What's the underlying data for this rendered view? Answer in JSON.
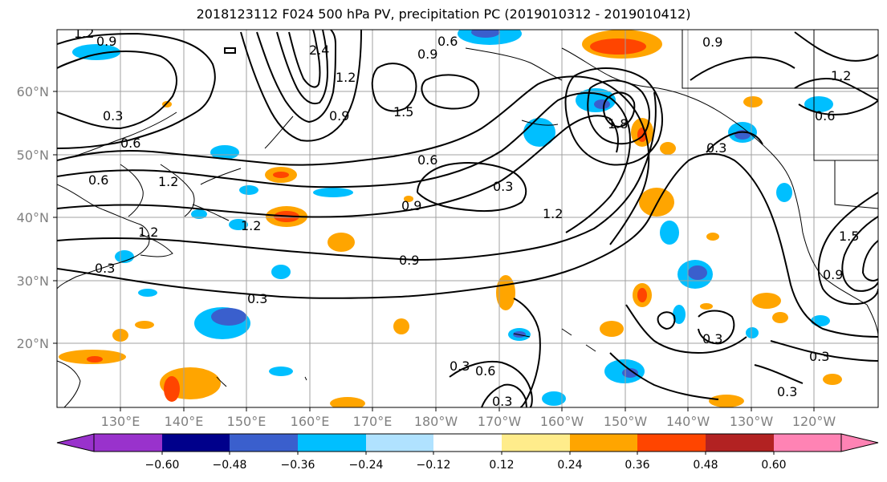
{
  "title": "2018123112 F024 500 hPa PV, precipitation PC (2019010312 - 2019010412)",
  "lat_labels": [
    "60°N",
    "50°N",
    "40°N",
    "30°N",
    "20°N"
  ],
  "lon_labels": [
    "130°E",
    "140°E",
    "150°E",
    "160°E",
    "170°E",
    "180°W",
    "170°W",
    "160°W",
    "150°W",
    "140°W",
    "130°W",
    "120°W"
  ],
  "colorbar": {
    "colors": [
      "#9932cc",
      "#00008b",
      "#3a5fcd",
      "#00bfff",
      "#b0e2ff",
      "#ffffff",
      "#ffec8b",
      "#ffa500",
      "#ff4500",
      "#b22222",
      "#ff83b4"
    ],
    "ticks": [
      "−0.60",
      "−0.48",
      "−0.36",
      "−0.24",
      "−0.12",
      "0.12",
      "0.24",
      "0.36",
      "0.48",
      "0.60"
    ]
  },
  "contour_labels": [
    {
      "text": "0.9"
    },
    {
      "text": "1.2"
    },
    {
      "text": "2.4"
    },
    {
      "text": "0.6"
    },
    {
      "text": "0.9"
    },
    {
      "text": "0.9"
    },
    {
      "text": "1.2"
    },
    {
      "text": "0.6"
    },
    {
      "text": "1.2"
    },
    {
      "text": "0.3"
    },
    {
      "text": "0.6"
    },
    {
      "text": "0.9"
    },
    {
      "text": "1.5"
    },
    {
      "text": "1.8"
    },
    {
      "text": "0.6"
    },
    {
      "text": "0.3"
    },
    {
      "text": "0.9"
    },
    {
      "text": "1.2"
    },
    {
      "text": "0.3"
    },
    {
      "text": "1.2"
    },
    {
      "text": "1.2"
    },
    {
      "text": "0.3"
    },
    {
      "text": "0.9"
    },
    {
      "text": "0.3"
    },
    {
      "text": "0.3"
    },
    {
      "text": "0.6"
    },
    {
      "text": "0.3"
    },
    {
      "text": "0.3"
    },
    {
      "text": "0.3"
    },
    {
      "text": "0.3"
    },
    {
      "text": "0.9"
    },
    {
      "text": "0.6"
    },
    {
      "text": "1.2"
    },
    {
      "text": "1.5"
    }
  ]
}
